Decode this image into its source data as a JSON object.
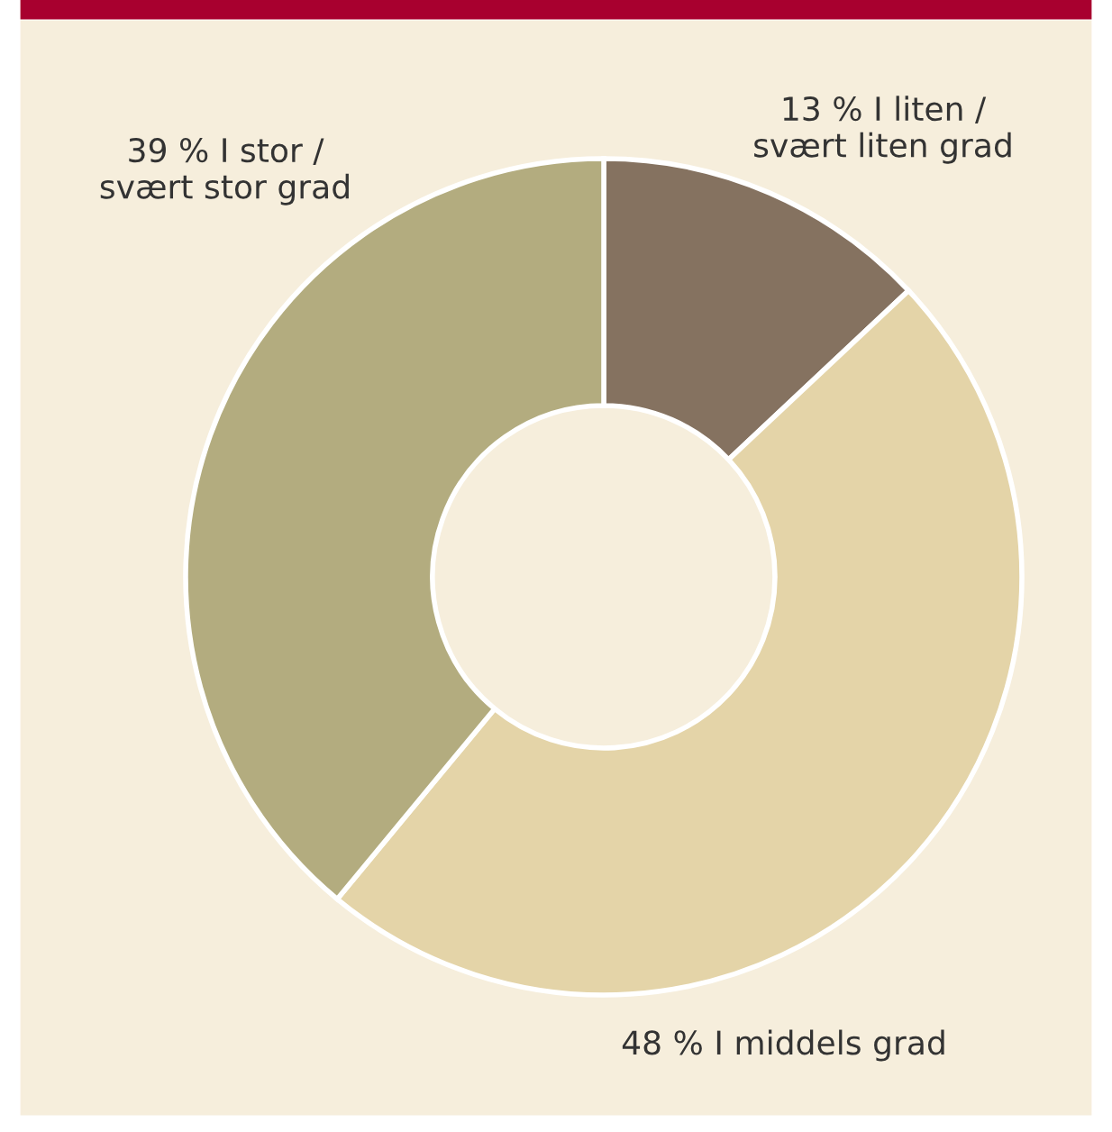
{
  "chart_data": {
    "type": "donut",
    "categories": [
      "I liten /\nsvært liten grad",
      "I middels grad",
      "I stor /\nsvært stor grad"
    ],
    "values": [
      13,
      48,
      39
    ],
    "value_labels": [
      "13 %",
      "48 %",
      "39 %"
    ],
    "colors": [
      "#857260",
      "#e4d4a8",
      "#b3ac7f"
    ],
    "legend": false
  }
}
